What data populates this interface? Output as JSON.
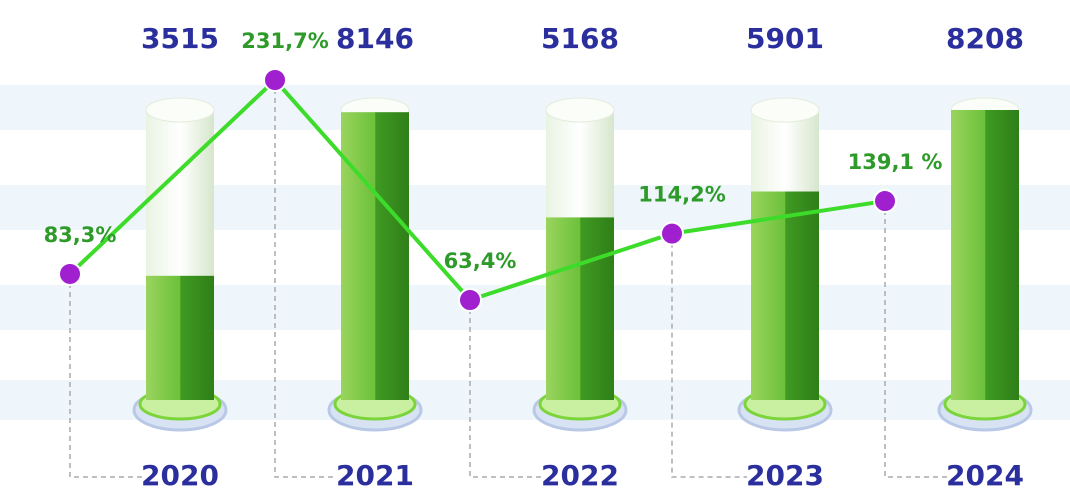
{
  "chart_data": {
    "type": "bar",
    "categories": [
      "2020",
      "2021",
      "2022",
      "2023",
      "2024"
    ],
    "values": [
      3515,
      8146,
      5168,
      5901,
      8208
    ],
    "color": "#5fb82a",
    "label_color": "#2b2f9e",
    "line_values": [
      83.3,
      231.7,
      63.4,
      114.2,
      139.1
    ],
    "line_value_labels": [
      "83,3%",
      "231,7%",
      "63,4%",
      "114,2%",
      "139,1 %"
    ],
    "line_color": "#3ddc2a",
    "marker_color": "#a020d0",
    "line_label_color": "#2e9a2a"
  }
}
